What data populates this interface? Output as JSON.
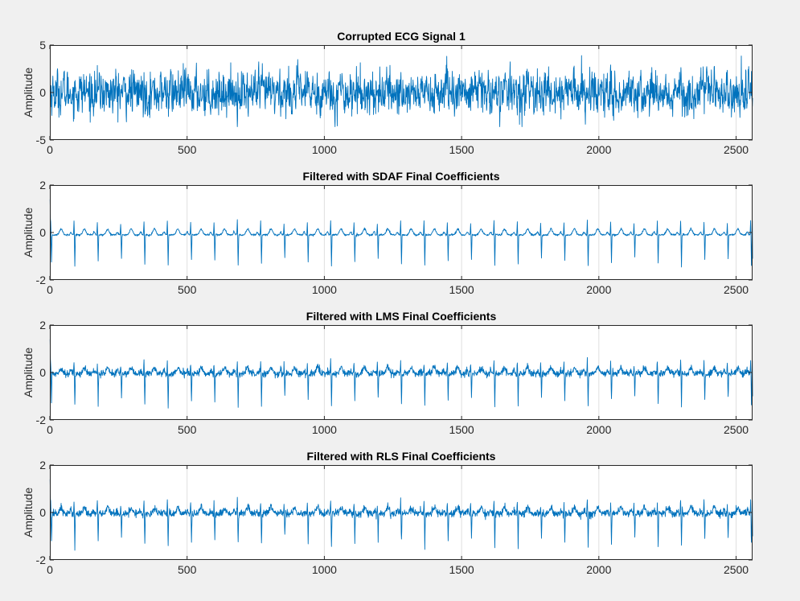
{
  "window": {
    "background": "#f0f0f0"
  },
  "style": {
    "line_color": "#0072bd",
    "axes_background": "#ffffff",
    "grid_color": "#dfdfdf",
    "axis_color": "#262626"
  },
  "chart_data": [
    {
      "type": "line",
      "title": "Corrupted ECG Signal 1",
      "xlabel": "",
      "ylabel": "Amplitude",
      "xlim": [
        0,
        2560
      ],
      "ylim": [
        -5,
        5
      ],
      "xticks": [
        0,
        500,
        1000,
        1500,
        2000,
        2500
      ],
      "yticks": [
        -5,
        0,
        5
      ],
      "grid": "vertical",
      "series": [
        {
          "kind": "noisy_signal",
          "n_points": 2560,
          "mean": 0,
          "std": 1.15,
          "peak_min": -3.6,
          "peak_max": 4.0
        }
      ]
    },
    {
      "type": "line",
      "title": "Filtered with SDAF Final Coefficients",
      "xlabel": "",
      "ylabel": "Amplitude",
      "xlim": [
        0,
        2560
      ],
      "ylim": [
        -2,
        2
      ],
      "xticks": [
        0,
        500,
        1000,
        1500,
        2000,
        2500
      ],
      "yticks": [
        -2,
        0,
        2
      ],
      "grid": "vertical",
      "series": [
        {
          "kind": "ecg",
          "n_points": 2560,
          "beat_period_samples": 85,
          "r_peak": 0.55,
          "s_trough": -1.15,
          "t_wave": 0.25,
          "baseline": -0.1,
          "noise": 0.02,
          "initial_spike": 1.4,
          "final_value": -1.1
        }
      ]
    },
    {
      "type": "line",
      "title": "Filtered with LMS Final Coefficients",
      "xlabel": "",
      "ylabel": "Amplitude",
      "xlim": [
        0,
        2560
      ],
      "ylim": [
        -2,
        2
      ],
      "xticks": [
        0,
        500,
        1000,
        1500,
        2000,
        2500
      ],
      "yticks": [
        -2,
        0,
        2
      ],
      "grid": "vertical",
      "series": [
        {
          "kind": "ecg",
          "n_points": 2560,
          "beat_period_samples": 85,
          "r_peak": 0.5,
          "s_trough": -1.2,
          "t_wave": 0.25,
          "baseline": -0.05,
          "noise": 0.07,
          "initial_spike": 1.4,
          "final_value": -1.0
        }
      ]
    },
    {
      "type": "line",
      "title": "Filtered with RLS Final Coefficients",
      "xlabel": "",
      "ylabel": "Amplitude",
      "xlim": [
        0,
        2560
      ],
      "ylim": [
        -2,
        2
      ],
      "xticks": [
        0,
        500,
        1000,
        1500,
        2000,
        2500
      ],
      "yticks": [
        -2,
        0,
        2
      ],
      "grid": "vertical",
      "series": [
        {
          "kind": "ecg",
          "n_points": 2560,
          "beat_period_samples": 85,
          "r_peak": 0.5,
          "s_trough": -1.2,
          "t_wave": 0.25,
          "baseline": -0.05,
          "noise": 0.08,
          "initial_spike": 1.4,
          "final_value": -1.0
        }
      ]
    }
  ]
}
